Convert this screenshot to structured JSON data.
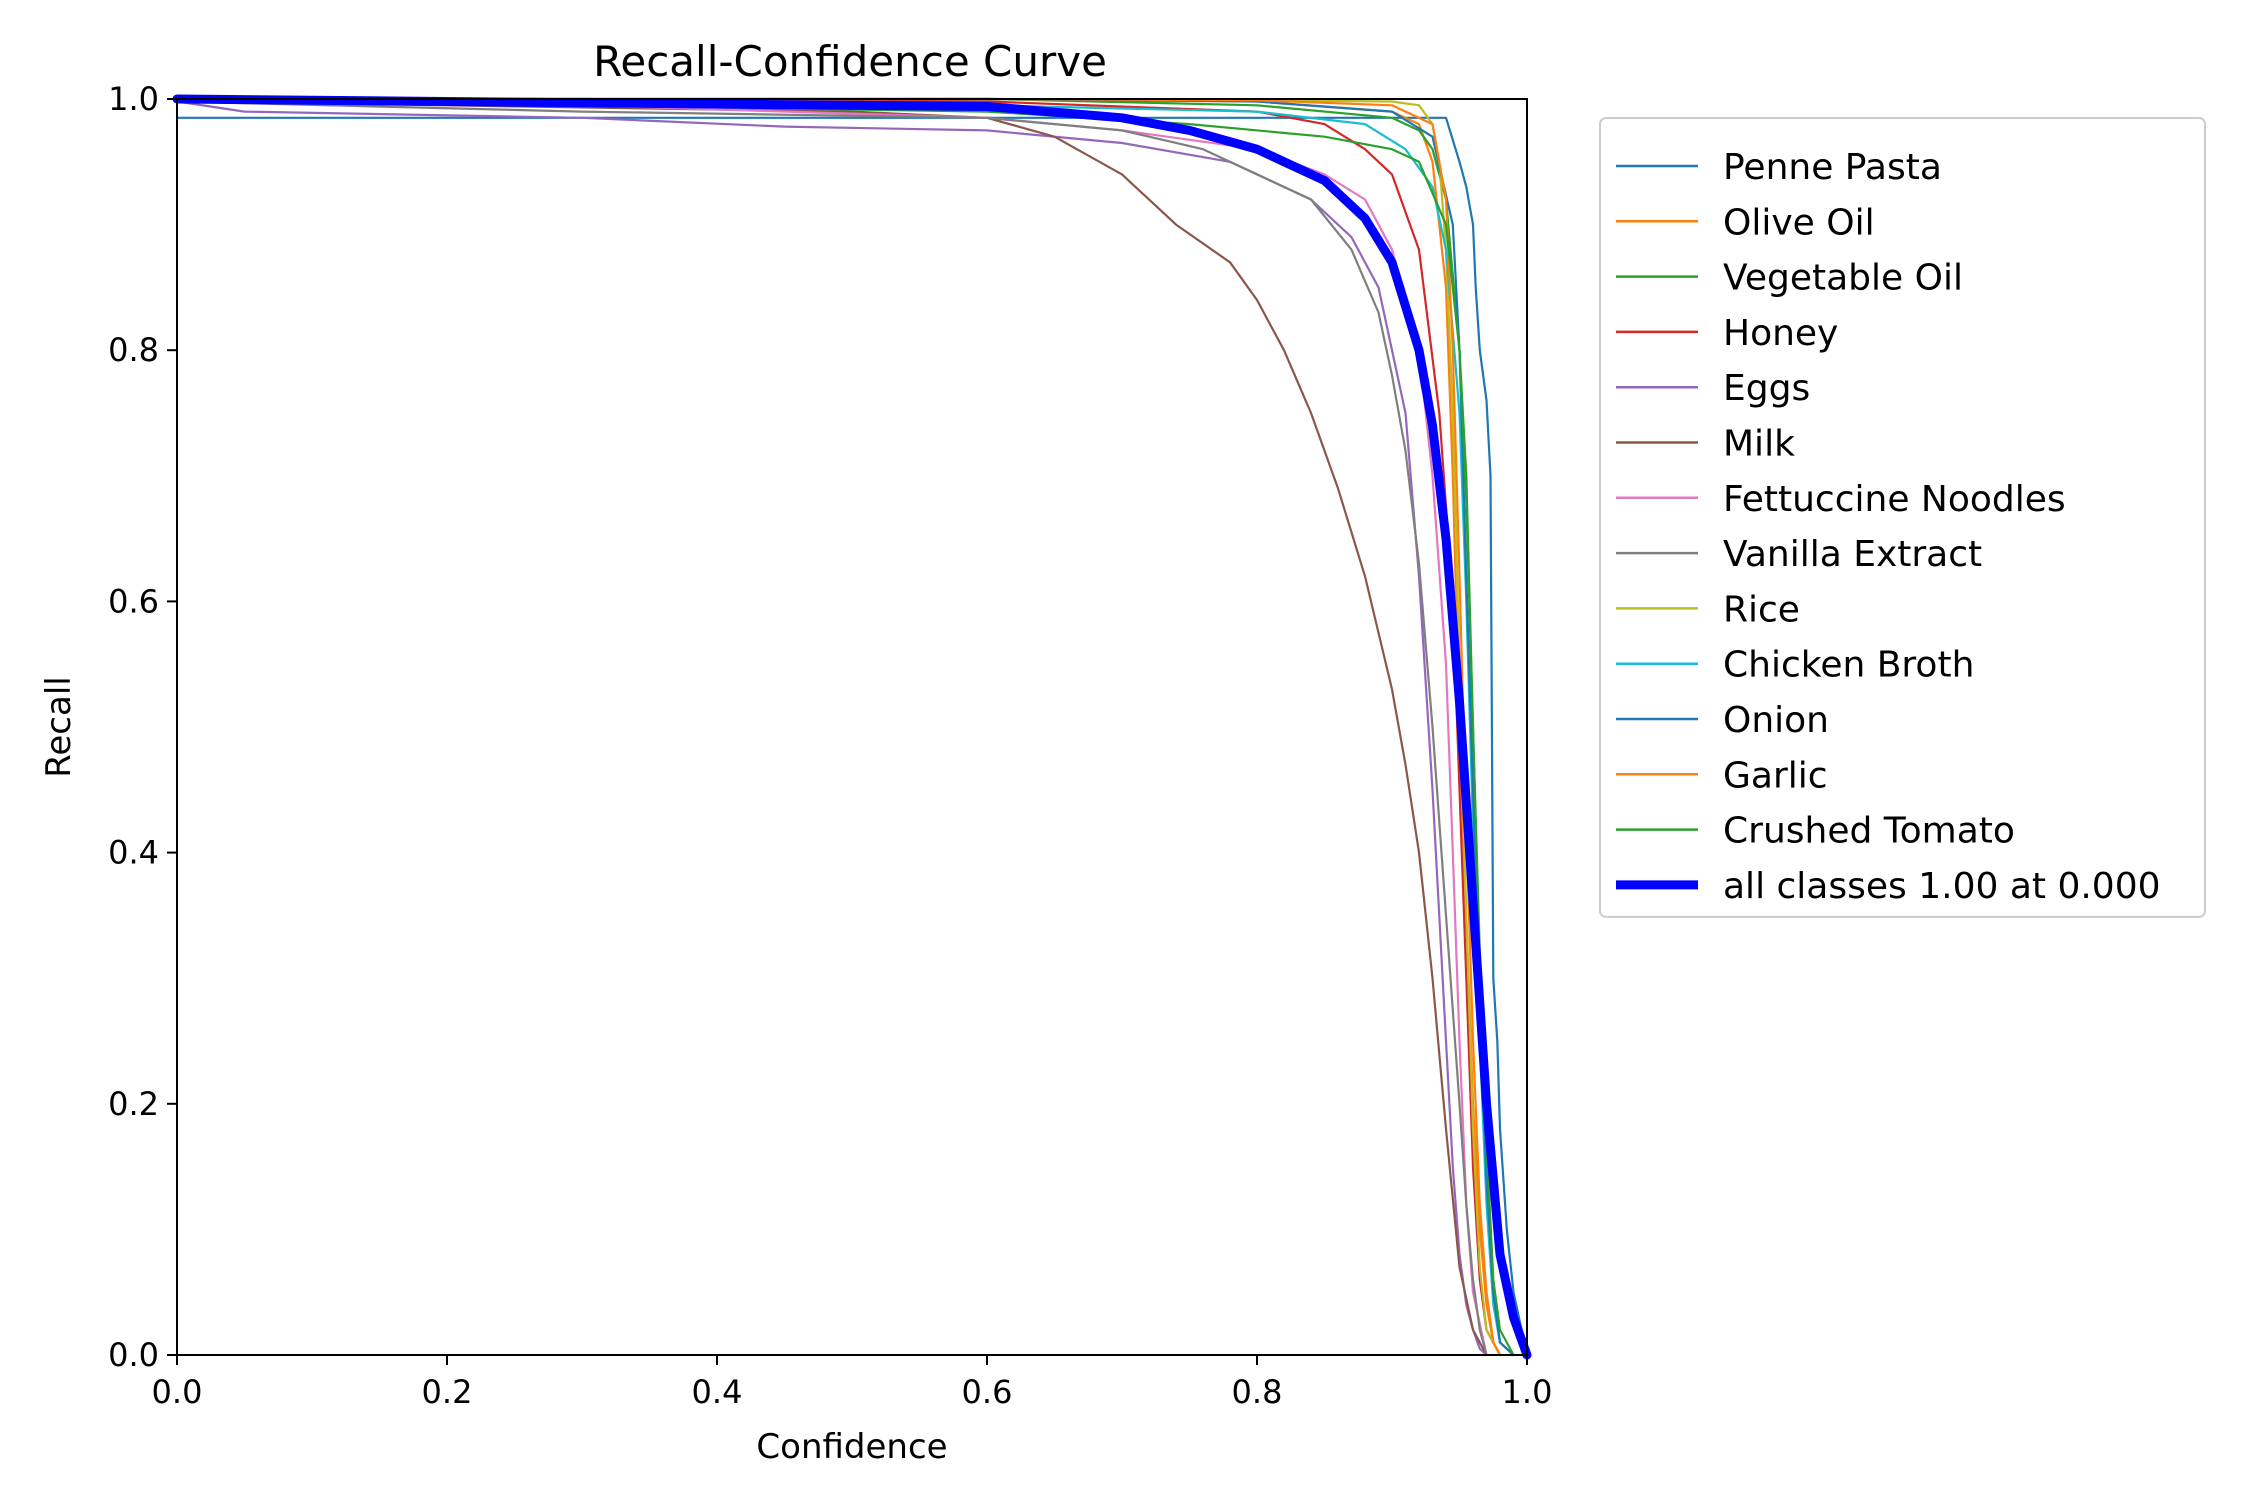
{
  "chart_data": {
    "type": "line",
    "title": "Recall-Confidence Curve",
    "xlabel": "Confidence",
    "ylabel": "Recall",
    "xlim": [
      0,
      1
    ],
    "ylim": [
      0,
      1
    ],
    "xticks": [
      "0.0",
      "0.2",
      "0.4",
      "0.6",
      "0.8",
      "1.0"
    ],
    "yticks": [
      "0.0",
      "0.2",
      "0.4",
      "0.6",
      "0.8",
      "1.0"
    ],
    "grid": false,
    "legend_position": "outside-right",
    "series": [
      {
        "name": "Penne Pasta",
        "color": "#1f77b4",
        "x": [
          0,
          0.2,
          0.5,
          0.8,
          0.94,
          0.95,
          0.955,
          0.96,
          0.962,
          0.965,
          0.97,
          0.973,
          0.975,
          0.978,
          0.98,
          0.985,
          0.99,
          1.0
        ],
        "y": [
          0.985,
          0.985,
          0.985,
          0.985,
          0.985,
          0.95,
          0.93,
          0.9,
          0.85,
          0.8,
          0.76,
          0.7,
          0.3,
          0.25,
          0.18,
          0.1,
          0.05,
          0.0
        ]
      },
      {
        "name": "Olive Oil",
        "color": "#ff7f0e",
        "x": [
          0,
          0.3,
          0.6,
          0.8,
          0.9,
          0.92,
          0.93,
          0.94,
          0.945,
          0.95,
          0.955,
          0.96,
          0.965,
          0.97,
          0.975,
          0.98
        ],
        "y": [
          1.0,
          1.0,
          1.0,
          0.998,
          0.99,
          0.98,
          0.95,
          0.85,
          0.7,
          0.5,
          0.35,
          0.2,
          0.1,
          0.04,
          0.01,
          0.0
        ]
      },
      {
        "name": "Vegetable Oil",
        "color": "#2ca02c",
        "x": [
          0,
          0.3,
          0.6,
          0.8,
          0.9,
          0.92,
          0.93,
          0.94,
          0.95,
          0.955,
          0.96,
          0.965,
          0.97,
          0.975,
          0.98,
          0.99
        ],
        "y": [
          1.0,
          1.0,
          1.0,
          0.995,
          0.985,
          0.975,
          0.96,
          0.92,
          0.8,
          0.7,
          0.5,
          0.3,
          0.15,
          0.05,
          0.01,
          0.0
        ]
      },
      {
        "name": "Honey",
        "color": "#d62728",
        "x": [
          0,
          0.3,
          0.6,
          0.8,
          0.85,
          0.88,
          0.9,
          0.92,
          0.935,
          0.945,
          0.95,
          0.955,
          0.96,
          0.965,
          0.97,
          0.98
        ],
        "y": [
          1.0,
          1.0,
          0.998,
          0.99,
          0.98,
          0.96,
          0.94,
          0.88,
          0.75,
          0.6,
          0.45,
          0.3,
          0.15,
          0.06,
          0.02,
          0.0
        ]
      },
      {
        "name": "Eggs",
        "color": "#9467bd",
        "x": [
          0,
          0.05,
          0.3,
          0.45,
          0.6,
          0.7,
          0.78,
          0.84,
          0.87,
          0.89,
          0.91,
          0.92,
          0.93,
          0.94,
          0.945,
          0.95,
          0.955,
          0.96,
          0.965,
          0.97
        ],
        "y": [
          0.998,
          0.99,
          0.985,
          0.978,
          0.975,
          0.965,
          0.95,
          0.92,
          0.89,
          0.85,
          0.75,
          0.62,
          0.45,
          0.25,
          0.15,
          0.08,
          0.04,
          0.02,
          0.005,
          0.0
        ]
      },
      {
        "name": "Milk",
        "color": "#8c564b",
        "x": [
          0,
          0.2,
          0.5,
          0.6,
          0.65,
          0.7,
          0.74,
          0.78,
          0.8,
          0.82,
          0.84,
          0.86,
          0.88,
          0.9,
          0.91,
          0.92,
          0.93,
          0.94,
          0.95,
          0.96,
          0.97
        ],
        "y": [
          0.998,
          0.995,
          0.99,
          0.985,
          0.97,
          0.94,
          0.9,
          0.87,
          0.84,
          0.8,
          0.75,
          0.69,
          0.62,
          0.53,
          0.47,
          0.4,
          0.3,
          0.18,
          0.07,
          0.02,
          0.0
        ]
      },
      {
        "name": "Fettuccine Noodles",
        "color": "#e377c2",
        "x": [
          0,
          0.3,
          0.6,
          0.7,
          0.8,
          0.85,
          0.88,
          0.9,
          0.92,
          0.93,
          0.94,
          0.945,
          0.95,
          0.955,
          0.96,
          0.97
        ],
        "y": [
          0.998,
          0.995,
          0.985,
          0.975,
          0.96,
          0.94,
          0.92,
          0.88,
          0.8,
          0.7,
          0.55,
          0.4,
          0.25,
          0.12,
          0.05,
          0.0
        ]
      },
      {
        "name": "Vanilla Extract",
        "color": "#7f7f7f",
        "x": [
          0,
          0.3,
          0.6,
          0.7,
          0.76,
          0.8,
          0.84,
          0.87,
          0.89,
          0.9,
          0.91,
          0.92,
          0.93,
          0.94,
          0.95,
          0.955,
          0.96,
          0.965,
          0.97
        ],
        "y": [
          0.998,
          0.99,
          0.985,
          0.975,
          0.96,
          0.94,
          0.92,
          0.88,
          0.83,
          0.78,
          0.72,
          0.63,
          0.5,
          0.35,
          0.2,
          0.12,
          0.06,
          0.02,
          0.0
        ]
      },
      {
        "name": "Rice",
        "color": "#bcbd22",
        "x": [
          0,
          0.3,
          0.6,
          0.8,
          0.9,
          0.92,
          0.93,
          0.935,
          0.94,
          0.945,
          0.95,
          0.955,
          0.96,
          0.965,
          0.97,
          0.98
        ],
        "y": [
          1.0,
          1.0,
          1.0,
          0.999,
          0.998,
          0.995,
          0.98,
          0.95,
          0.88,
          0.75,
          0.55,
          0.35,
          0.18,
          0.07,
          0.02,
          0.0
        ]
      },
      {
        "name": "Chicken Broth",
        "color": "#17becf",
        "x": [
          0,
          0.3,
          0.6,
          0.8,
          0.88,
          0.91,
          0.93,
          0.94,
          0.95,
          0.955,
          0.96,
          0.965,
          0.97,
          0.975,
          0.98,
          0.99
        ],
        "y": [
          0.998,
          0.998,
          0.995,
          0.99,
          0.98,
          0.96,
          0.93,
          0.88,
          0.75,
          0.6,
          0.42,
          0.25,
          0.12,
          0.04,
          0.01,
          0.0
        ]
      },
      {
        "name": "Onion",
        "color": "#1f77b4",
        "x": [
          0,
          0.3,
          0.6,
          0.8,
          0.9,
          0.93,
          0.945,
          0.95,
          0.955,
          0.96,
          0.965,
          0.97,
          0.975,
          0.98,
          0.99
        ],
        "y": [
          1.0,
          1.0,
          1.0,
          0.998,
          0.99,
          0.97,
          0.9,
          0.8,
          0.62,
          0.45,
          0.28,
          0.14,
          0.05,
          0.01,
          0.0
        ]
      },
      {
        "name": "Garlic",
        "color": "#ff7f0e",
        "x": [
          0,
          0.3,
          0.6,
          0.8,
          0.9,
          0.93,
          0.94,
          0.945,
          0.95,
          0.955,
          0.96,
          0.965,
          0.97,
          0.975,
          0.98
        ],
        "y": [
          1.0,
          1.0,
          1.0,
          0.999,
          0.995,
          0.98,
          0.92,
          0.8,
          0.62,
          0.42,
          0.25,
          0.12,
          0.05,
          0.01,
          0.0
        ]
      },
      {
        "name": "Crushed Tomato",
        "color": "#2ca02c",
        "x": [
          0,
          0.3,
          0.6,
          0.75,
          0.85,
          0.9,
          0.92,
          0.94,
          0.95,
          0.955,
          0.96,
          0.965,
          0.97,
          0.975,
          0.98,
          0.99
        ],
        "y": [
          0.998,
          0.995,
          0.99,
          0.98,
          0.97,
          0.96,
          0.95,
          0.9,
          0.8,
          0.68,
          0.5,
          0.32,
          0.17,
          0.06,
          0.02,
          0.0
        ]
      },
      {
        "name": "all classes 1.00 at 0.000",
        "color": "#0000ff",
        "bold": true,
        "x": [
          0,
          0.3,
          0.6,
          0.7,
          0.75,
          0.8,
          0.85,
          0.88,
          0.9,
          0.92,
          0.93,
          0.94,
          0.95,
          0.955,
          0.96,
          0.965,
          0.97,
          0.975,
          0.98,
          0.99,
          1.0
        ],
        "y": [
          1.0,
          0.997,
          0.994,
          0.985,
          0.975,
          0.96,
          0.935,
          0.905,
          0.87,
          0.8,
          0.74,
          0.65,
          0.52,
          0.44,
          0.36,
          0.28,
          0.2,
          0.14,
          0.08,
          0.03,
          0.0
        ]
      }
    ]
  }
}
